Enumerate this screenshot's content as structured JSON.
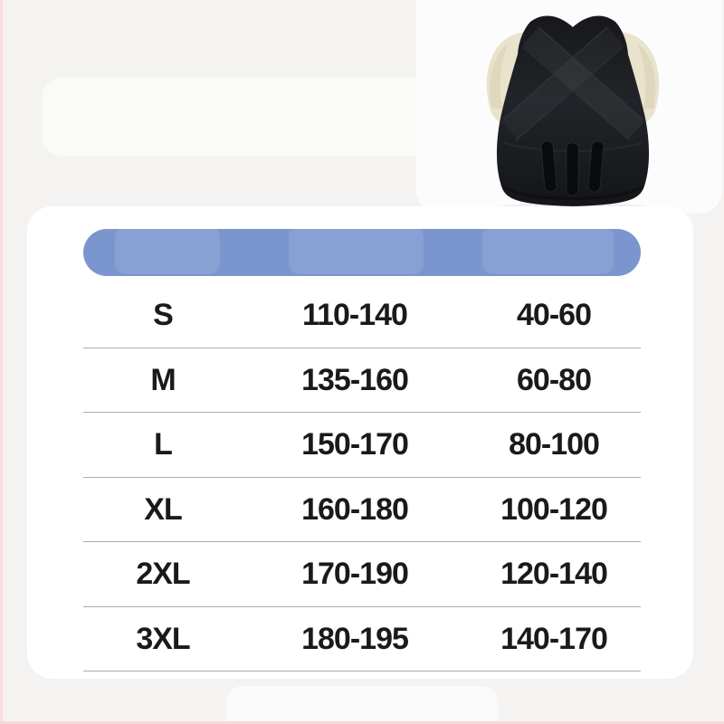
{
  "page": {
    "background_color": "#f4f3f2",
    "left_edge_color": "#fbdce2",
    "bottom_edge_color": "#f8d8da",
    "card_color": "#ffffff",
    "header_bar_color": "#7b96ce",
    "divider_color": "#ababab",
    "text_color": "#1a1a1a"
  },
  "product_image": {
    "description": "black posture corrector vest, back view, worn on cream mannequin torso, white backdrop",
    "vest_color": "#1d1f23",
    "mannequin_color": "#e9e2cc",
    "backdrop_color": "#fcfcfd"
  },
  "header": {
    "label_col1": "",
    "label_col2": "",
    "label_col3": ""
  },
  "table": {
    "rows": [
      {
        "cells": [
          "S",
          "110-140",
          "40-60"
        ]
      },
      {
        "cells": [
          "M",
          "135-160",
          "60-80"
        ]
      },
      {
        "cells": [
          "L",
          "150-170",
          "80-100"
        ]
      },
      {
        "cells": [
          "XL",
          "160-180",
          "100-120"
        ]
      },
      {
        "cells": [
          "2XL",
          "170-190",
          "120-140"
        ]
      },
      {
        "cells": [
          "3XL",
          "180-195",
          "140-170"
        ]
      }
    ]
  },
  "chart_data": {
    "type": "table",
    "title": "",
    "columns": [
      "",
      "",
      ""
    ],
    "rows": [
      [
        "S",
        "110-140",
        "40-60"
      ],
      [
        "M",
        "135-160",
        "60-80"
      ],
      [
        "L",
        "150-170",
        "80-100"
      ],
      [
        "XL",
        "160-180",
        "100-120"
      ],
      [
        "2XL",
        "170-190",
        "120-140"
      ],
      [
        "3XL",
        "180-195",
        "140-170"
      ]
    ]
  }
}
